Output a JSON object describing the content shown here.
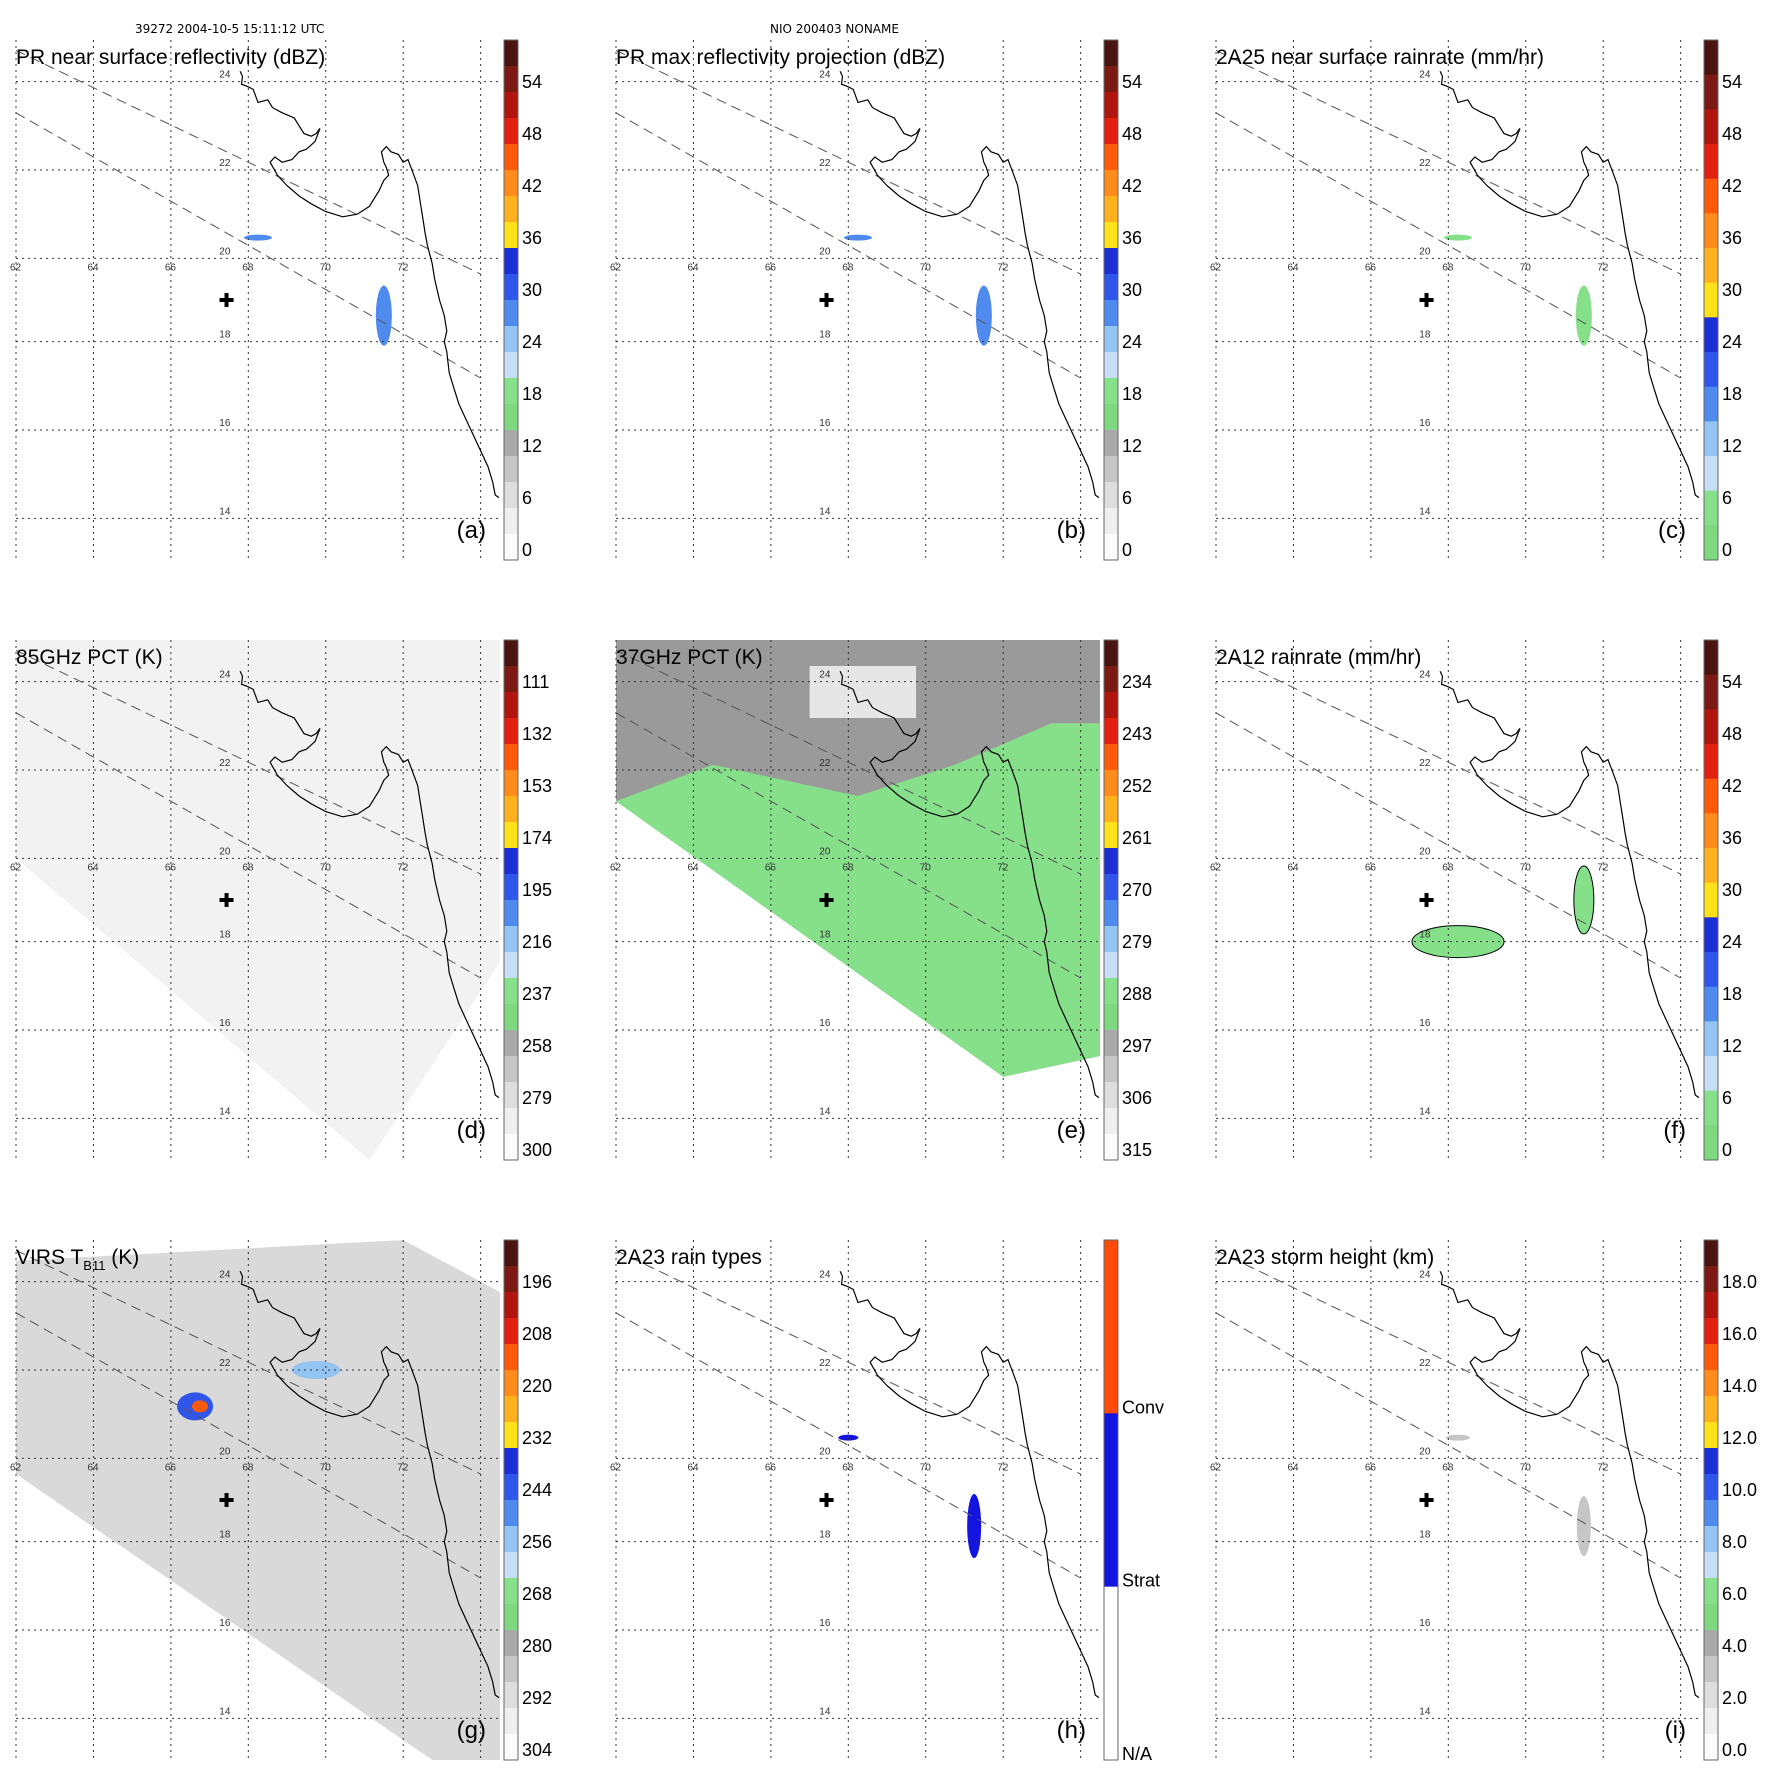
{
  "header": {
    "orbit_time": "39272 2004-10-5 15:11:12 UTC",
    "storm": "NIO 200403 NONAME"
  },
  "map": {
    "lat_labels": [
      "24",
      "22",
      "20",
      "18",
      "16",
      "14"
    ],
    "lon_labels": [
      "62",
      "64",
      "66",
      "68",
      "70",
      "72"
    ],
    "swath_edge_label": "",
    "storm_center_marker": "+"
  },
  "panels": [
    {
      "id": "a",
      "title": "PR near surface reflectivity (dBZ)",
      "letter": "(a)",
      "cb": {
        "labels": [
          "54",
          "48",
          "42",
          "36",
          "30",
          "24",
          "18",
          "12",
          "6",
          "0"
        ],
        "colors": [
          "#4a1410",
          "#7a1a12",
          "#b0150f",
          "#e22010",
          "#ff5a0a",
          "#ff8c1a",
          "#ffb21e",
          "#ffe21a",
          "#1c2fd4",
          "#2f55ea",
          "#4f8aef",
          "#93c4f2",
          "#c7dcf5",
          "#86e08a",
          "#7ed87f",
          "#a9a9a9",
          "#c6c6c6",
          "#dedede",
          "#efefef",
          "#fbfbfb"
        ]
      }
    },
    {
      "id": "b",
      "title": "PR max reflectivity projection (dBZ)",
      "letter": "(b)",
      "cb": {
        "labels": [
          "54",
          "48",
          "42",
          "36",
          "30",
          "24",
          "18",
          "12",
          "6",
          "0"
        ],
        "colors": [
          "#4a1410",
          "#7a1a12",
          "#b0150f",
          "#e22010",
          "#ff5a0a",
          "#ff8c1a",
          "#ffb21e",
          "#ffe21a",
          "#1c2fd4",
          "#2f55ea",
          "#4f8aef",
          "#93c4f2",
          "#c7dcf5",
          "#86e08a",
          "#7ed87f",
          "#a9a9a9",
          "#c6c6c6",
          "#dedede",
          "#efefef",
          "#fbfbfb"
        ]
      }
    },
    {
      "id": "c",
      "title": "2A25 near surface rainrate (mm/hr)",
      "letter": "(c)",
      "cb": {
        "labels": [
          "54",
          "48",
          "42",
          "36",
          "30",
          "24",
          "18",
          "12",
          "6",
          "0"
        ],
        "colors": [
          "#4a1410",
          "#7a1a12",
          "#b0150f",
          "#e22010",
          "#ff5a0a",
          "#ff8c1a",
          "#ffb21e",
          "#ffe21a",
          "#1c2fd4",
          "#2f55ea",
          "#4f8aef",
          "#93c4f2",
          "#c7dcf5",
          "#86e08a",
          "#7ed87f"
        ]
      }
    },
    {
      "id": "d",
      "title": "85GHz PCT (K)",
      "letter": "(d)",
      "cb": {
        "labels": [
          "111",
          "132",
          "153",
          "174",
          "195",
          "216",
          "237",
          "258",
          "279",
          "300"
        ],
        "colors": [
          "#4a1410",
          "#7a1a12",
          "#b0150f",
          "#e22010",
          "#ff5a0a",
          "#ff8c1a",
          "#ffb21e",
          "#ffe21a",
          "#1c2fd4",
          "#2f55ea",
          "#4f8aef",
          "#93c4f2",
          "#c7dcf5",
          "#86e08a",
          "#7ed87f",
          "#a9a9a9",
          "#c6c6c6",
          "#dedede",
          "#efefef",
          "#fbfbfb"
        ]
      }
    },
    {
      "id": "e",
      "title": "37GHz PCT (K)",
      "letter": "(e)",
      "cb": {
        "labels": [
          "234",
          "243",
          "252",
          "261",
          "270",
          "279",
          "288",
          "297",
          "306",
          "315"
        ],
        "colors": [
          "#4a1410",
          "#7a1a12",
          "#b0150f",
          "#e22010",
          "#ff5a0a",
          "#ff8c1a",
          "#ffb21e",
          "#ffe21a",
          "#1c2fd4",
          "#2f55ea",
          "#4f8aef",
          "#93c4f2",
          "#c7dcf5",
          "#86e08a",
          "#7ed87f",
          "#a9a9a9",
          "#c6c6c6",
          "#dedede",
          "#efefef",
          "#fbfbfb"
        ]
      }
    },
    {
      "id": "f",
      "title": "2A12 rainrate (mm/hr)",
      "letter": "(f)",
      "cb": {
        "labels": [
          "54",
          "48",
          "42",
          "36",
          "30",
          "24",
          "18",
          "12",
          "6",
          "0"
        ],
        "colors": [
          "#4a1410",
          "#7a1a12",
          "#b0150f",
          "#e22010",
          "#ff5a0a",
          "#ff8c1a",
          "#ffb21e",
          "#ffe21a",
          "#1c2fd4",
          "#2f55ea",
          "#4f8aef",
          "#93c4f2",
          "#c7dcf5",
          "#86e08a",
          "#7ed87f"
        ]
      }
    },
    {
      "id": "g",
      "title": "VIRS T",
      "title_sub": "B11",
      "title_unit": " (K)",
      "letter": "(g)",
      "cb": {
        "labels": [
          "196",
          "208",
          "220",
          "232",
          "244",
          "256",
          "268",
          "280",
          "292",
          "304"
        ],
        "colors": [
          "#4a1410",
          "#7a1a12",
          "#b0150f",
          "#e22010",
          "#ff5a0a",
          "#ff8c1a",
          "#ffb21e",
          "#ffe21a",
          "#1c2fd4",
          "#2f55ea",
          "#4f8aef",
          "#93c4f2",
          "#c7dcf5",
          "#86e08a",
          "#7ed87f",
          "#a9a9a9",
          "#c6c6c6",
          "#dedede",
          "#efefef",
          "#fbfbfb"
        ]
      }
    },
    {
      "id": "h",
      "title": "2A23 rain types",
      "letter": "(h)",
      "cb": {
        "labels": [
          "Conv",
          "Strat",
          "N/A"
        ],
        "colors": [
          "#ff4a0a",
          "#1414e0",
          "#ffffff"
        ]
      }
    },
    {
      "id": "i",
      "title": "2A23 storm height (km)",
      "letter": "(i)",
      "cb": {
        "labels": [
          "18.0",
          "16.0",
          "14.0",
          "12.0",
          "10.0",
          "8.0",
          "6.0",
          "4.0",
          "2.0",
          "0.0"
        ],
        "colors": [
          "#4a1410",
          "#7a1a12",
          "#b0150f",
          "#e22010",
          "#ff5a0a",
          "#ff8c1a",
          "#ffb21e",
          "#ffe21a",
          "#1c2fd4",
          "#2f55ea",
          "#4f8aef",
          "#93c4f2",
          "#c7dcf5",
          "#86e08a",
          "#7ed87f",
          "#a9a9a9",
          "#c6c6c6",
          "#dedede",
          "#efefef",
          "#fbfbfb"
        ]
      }
    }
  ]
}
